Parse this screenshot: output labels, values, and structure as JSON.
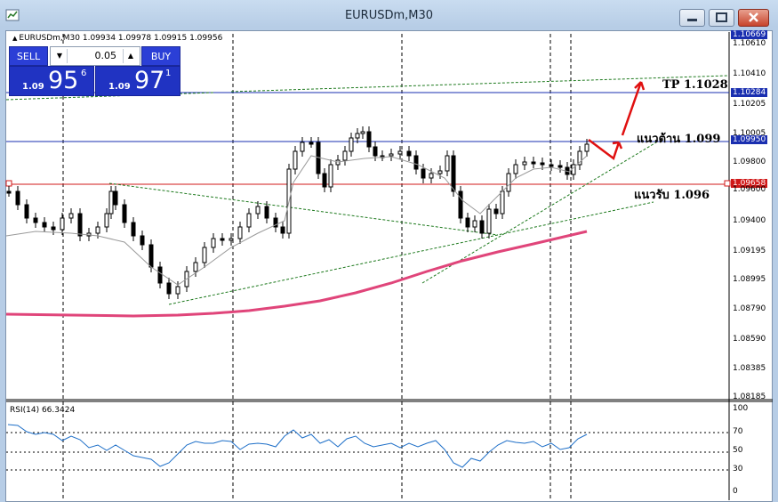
{
  "window": {
    "title": "EURUSDm,M30",
    "min_icon": "minimize-icon",
    "max_icon": "maximize-icon",
    "close_icon": "close-icon"
  },
  "chart_header": {
    "marker": "▲",
    "text": "EURUSDm,M30  1.09934 1.09978 1.09915 1.09956"
  },
  "trade_panel": {
    "sell_label": "SELL",
    "buy_label": "BUY",
    "lot": "0.05",
    "bid_small": "1.09",
    "bid_big": "95",
    "bid_sup": "6",
    "ask_small": "1.09",
    "ask_big": "97",
    "ask_sup": "1"
  },
  "price_axis": {
    "labels": [
      "1.10669",
      "1.10610",
      "1.10410",
      "1.10284",
      "1.10205",
      "1.10005",
      "1.09950",
      "1.09800",
      "1.09658",
      "1.09600",
      "1.09400",
      "1.09195",
      "1.08995",
      "1.08790",
      "1.08590",
      "1.08385",
      "1.08185"
    ],
    "highlighted": {
      "1.10669": "#1a2fb0",
      "1.10284": "#1a2fb0",
      "1.09950": "#1a2fb0",
      "1.09658": "#d01818"
    }
  },
  "rsi": {
    "label": "RSI(14) 66.3424",
    "axis": [
      "100",
      "70",
      "50",
      "30",
      "0"
    ]
  },
  "annotations": {
    "tp": "TP 1.1028",
    "resistance": "แนวต้าน 1.099",
    "support": "แนวรับ 1.096"
  },
  "colors": {
    "resistance_line": "#1a2fb0",
    "support_line": "#d01818",
    "ma_slow": "#e0457a",
    "trendline": "#1e7a1e",
    "rsi_line": "#1e6fc8",
    "arrow": "#e01010"
  }
}
